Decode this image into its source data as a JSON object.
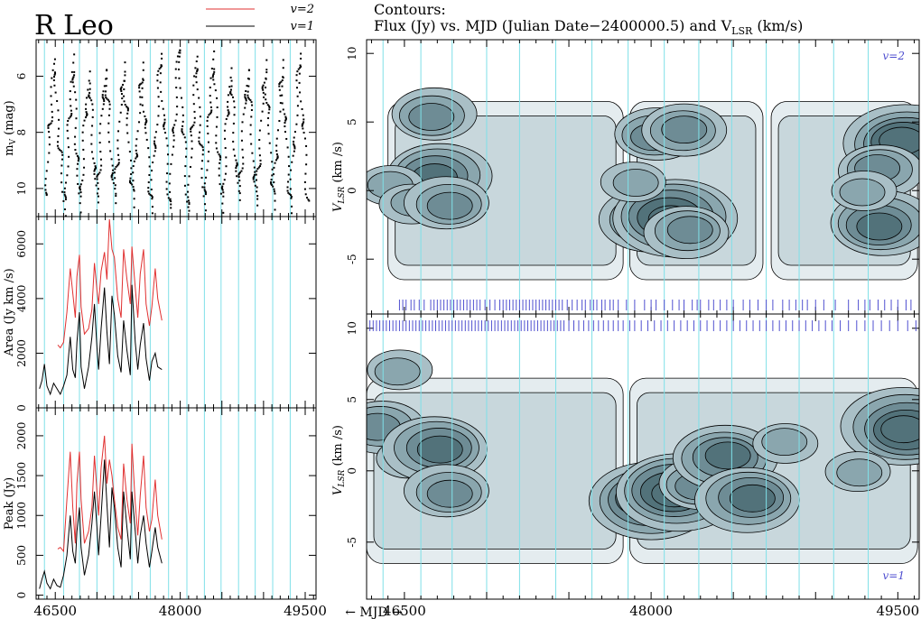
{
  "figure": {
    "star": "R Leo",
    "contour_title_line1": "Contours:",
    "contour_title_line2_part1": "Flux (Jy) vs. MJD (Julian  Date−2400000.5) and V",
    "contour_title_sub": "LSR",
    "contour_title_line2_part2": " (km/s)",
    "mjd_arrow_label": "← MJD →",
    "line_colors": {
      "v2": "#e03030",
      "v1": "#000000",
      "cycle": "#7fe0e8",
      "tick": "#5050d0"
    },
    "contour_fills": [
      "#e4ecef",
      "#c8d7dc",
      "#a9bfc6",
      "#8aa6ae",
      "#6e8c95",
      "#52727a"
    ]
  },
  "chart_data": [
    {
      "id": "light-curve",
      "type": "scatter",
      "xlabel": "",
      "ylabel": "mV (mag)",
      "x_ticks": [
        46500,
        48000,
        49500
      ],
      "y_ticks": [
        6,
        8,
        10
      ],
      "xlim": [
        46270,
        49630
      ],
      "ylim": [
        11.0,
        4.7
      ],
      "series": [
        {
          "x": [
            46370,
            46470,
            46600,
            46700,
            46780,
            46890,
            46990,
            47090,
            47200,
            47310,
            47420,
            47530,
            47640,
            47750,
            47860,
            47970,
            48080,
            48180,
            48280,
            48380,
            48490,
            48590,
            48690,
            48800,
            48900,
            49010,
            49110,
            49210,
            49310,
            49420,
            49520
          ],
          "y": [
            10.2,
            5.7,
            10.6,
            5.5,
            10.6,
            5.9,
            10.5,
            5.6,
            10.5,
            5.6,
            10.4,
            5.8,
            10.5,
            5.5,
            10.4,
            5.2,
            10.5,
            5.6,
            10.4,
            5.4,
            10.6,
            5.8,
            10.4,
            5.6,
            10.6,
            5.5,
            10.5,
            5.7,
            10.5,
            5.5,
            10.4
          ]
        }
      ]
    },
    {
      "id": "area-curve",
      "type": "line",
      "ylabel": "Area (Jy km /s)",
      "y_ticks": [
        0,
        2000,
        4000,
        6000
      ],
      "xlim": [
        46270,
        49630
      ],
      "ylim": [
        0,
        7000
      ],
      "legend": [
        "v=2",
        "v=1"
      ],
      "series": [
        {
          "name": "v=2",
          "x": [
            46530,
            46560,
            46600,
            46640,
            46680,
            46710,
            46740,
            46760,
            46790,
            46810,
            46850,
            46900,
            46940,
            46970,
            47000,
            47020,
            47050,
            47090,
            47120,
            47150,
            47180,
            47210,
            47250,
            47290,
            47320,
            47360,
            47400,
            47420,
            47460,
            47490,
            47520,
            47560,
            47590,
            47630,
            47660,
            47700,
            47730,
            47780
          ],
          "y": [
            2300,
            2200,
            2400,
            3500,
            5100,
            4200,
            3300,
            4800,
            5600,
            3700,
            2700,
            2900,
            3600,
            5300,
            4300,
            3800,
            5000,
            5700,
            4700,
            6900,
            5800,
            5500,
            4000,
            3300,
            5800,
            4700,
            3800,
            5900,
            4400,
            3300,
            4900,
            5800,
            3800,
            3000,
            3700,
            5100,
            4000,
            3200
          ]
        },
        {
          "name": "v=1",
          "x": [
            46310,
            46340,
            46370,
            46400,
            46440,
            46480,
            46520,
            46560,
            46600,
            46640,
            46680,
            46710,
            46740,
            46760,
            46790,
            46810,
            46850,
            46900,
            46940,
            46970,
            47000,
            47020,
            47050,
            47090,
            47120,
            47150,
            47180,
            47210,
            47250,
            47290,
            47320,
            47360,
            47400,
            47420,
            47460,
            47490,
            47520,
            47560,
            47590,
            47630,
            47660,
            47700,
            47730,
            47780
          ],
          "y": [
            700,
            1000,
            1600,
            800,
            500,
            900,
            700,
            500,
            800,
            1200,
            2600,
            1400,
            1100,
            2400,
            3500,
            1500,
            700,
            1500,
            2600,
            3800,
            2200,
            1400,
            2900,
            4400,
            2800,
            1600,
            4100,
            3400,
            1900,
            1300,
            3200,
            2100,
            1200,
            4500,
            2400,
            1400,
            2300,
            3100,
            1800,
            1000,
            1700,
            2000,
            1500,
            1400
          ]
        }
      ]
    },
    {
      "id": "peak-curve",
      "type": "line",
      "ylabel": "Peak (Jy)",
      "x_ticks": [
        46500,
        48000,
        49500
      ],
      "y_ticks": [
        0,
        500,
        1000,
        1500,
        2000
      ],
      "xlim": [
        46270,
        49630
      ],
      "ylim": [
        -50,
        2350
      ],
      "series": [
        {
          "name": "v=2",
          "x": [
            46530,
            46560,
            46600,
            46640,
            46680,
            46710,
            46740,
            46760,
            46790,
            46810,
            46850,
            46900,
            46940,
            46970,
            47000,
            47020,
            47050,
            47090,
            47120,
            47150,
            47180,
            47210,
            47250,
            47290,
            47320,
            47360,
            47400,
            47420,
            47460,
            47490,
            47520,
            47560,
            47590,
            47630,
            47660,
            47700,
            47730,
            47780
          ],
          "y": [
            580,
            600,
            550,
            1200,
            1800,
            1100,
            650,
            1400,
            1800,
            1200,
            650,
            800,
            1100,
            1750,
            1300,
            1000,
            1600,
            2000,
            1400,
            1700,
            1500,
            1200,
            850,
            700,
            1650,
            1200,
            900,
            1900,
            1150,
            750,
            1250,
            1750,
            1100,
            800,
            950,
            1450,
            1000,
            700
          ]
        },
        {
          "name": "v=1",
          "x": [
            46310,
            46340,
            46370,
            46400,
            46440,
            46480,
            46520,
            46560,
            46600,
            46640,
            46680,
            46710,
            46740,
            46760,
            46790,
            46810,
            46850,
            46900,
            46940,
            46970,
            47000,
            47020,
            47050,
            47090,
            47120,
            47150,
            47180,
            47210,
            47250,
            47290,
            47320,
            47360,
            47400,
            47420,
            47460,
            47490,
            47520,
            47560,
            47590,
            47630,
            47660,
            47700,
            47730,
            47780
          ],
          "y": [
            80,
            200,
            300,
            150,
            80,
            200,
            120,
            100,
            250,
            500,
            1000,
            550,
            400,
            800,
            1100,
            600,
            250,
            500,
            900,
            1300,
            850,
            500,
            1000,
            1700,
            1150,
            600,
            1350,
            1100,
            600,
            350,
            1300,
            850,
            450,
            1300,
            800,
            400,
            750,
            1000,
            650,
            350,
            550,
            850,
            600,
            400
          ]
        }
      ]
    },
    {
      "id": "contour-v2",
      "type": "heatmap",
      "label": "v=2",
      "ylabel": "VLSR (km /s)",
      "y_ticks": [
        -5,
        0,
        5,
        10
      ],
      "xlim": [
        46270,
        49630
      ],
      "ylim": [
        -9,
        11
      ],
      "blobs": [
        {
          "mjd": 46700,
          "v": 1.0,
          "level": 5
        },
        {
          "mjd": 46680,
          "v": 5.5,
          "level": 4
        },
        {
          "mjd": 46430,
          "v": 0.5,
          "level": 3
        },
        {
          "mjd": 46560,
          "v": -1.0,
          "level": 3
        },
        {
          "mjd": 46760,
          "v": -1.0,
          "level": 4
        },
        {
          "mjd": 47990,
          "v": -2.0,
          "level": 5
        },
        {
          "mjd": 48130,
          "v": -2.0,
          "level": 6
        },
        {
          "mjd": 48030,
          "v": 4.0,
          "level": 4
        },
        {
          "mjd": 48210,
          "v": 4.5,
          "level": 4
        },
        {
          "mjd": 48230,
          "v": -3.0,
          "level": 4
        },
        {
          "mjd": 47900,
          "v": 0.5,
          "level": 3
        },
        {
          "mjd": 49540,
          "v": 3.5,
          "level": 6
        },
        {
          "mjd": 49380,
          "v": 1.5,
          "level": 4
        },
        {
          "mjd": 49400,
          "v": -2.5,
          "level": 5
        },
        {
          "mjd": 49300,
          "v": 0.0,
          "level": 3
        }
      ]
    },
    {
      "id": "contour-v1",
      "type": "heatmap",
      "label": "v=1",
      "ylabel": "VLSR (km /s)",
      "x_ticks": [
        46500,
        48000,
        49500
      ],
      "y_ticks": [
        -5,
        0,
        5,
        10
      ],
      "xlim": [
        46270,
        49630
      ],
      "ylim": [
        -9,
        11
      ],
      "blobs": [
        {
          "mjd": 46350,
          "v": 3.0,
          "level": 4
        },
        {
          "mjd": 46470,
          "v": 7.0,
          "level": 3
        },
        {
          "mjd": 46540,
          "v": 1.0,
          "level": 3
        },
        {
          "mjd": 46700,
          "v": 1.5,
          "level": 5
        },
        {
          "mjd": 46760,
          "v": -1.5,
          "level": 4
        },
        {
          "mjd": 47990,
          "v": -2.0,
          "level": 6
        },
        {
          "mjd": 48150,
          "v": -1.5,
          "level": 6
        },
        {
          "mjd": 48300,
          "v": -1.0,
          "level": 4
        },
        {
          "mjd": 48460,
          "v": 1.0,
          "level": 5
        },
        {
          "mjd": 48600,
          "v": -2.0,
          "level": 5
        },
        {
          "mjd": 49540,
          "v": 3.0,
          "level": 6
        },
        {
          "mjd": 49250,
          "v": 0.0,
          "level": 3
        },
        {
          "mjd": 48800,
          "v": 2.0,
          "level": 3
        }
      ]
    }
  ],
  "cycles": [
    46370,
    46600,
    46790,
    47000,
    47200,
    47420,
    47640,
    47860,
    48080,
    48290,
    48490,
    48700,
    48900,
    49110,
    49320
  ],
  "obs_ticks_v2": [
    46470,
    46490,
    46510,
    46540,
    46560,
    46590,
    46620,
    46660,
    46680,
    46700,
    46720,
    46740,
    46760,
    46780,
    46800,
    46820,
    46840,
    46860,
    46880,
    46900,
    46920,
    46940,
    46960,
    46990,
    47020,
    47050,
    47080,
    47100,
    47120,
    47140,
    47160,
    47180,
    47200,
    47220,
    47240,
    47260,
    47280,
    47300,
    47320,
    47340,
    47360,
    47380,
    47400,
    47420,
    47440,
    47460,
    47490,
    47520,
    47550,
    47580,
    47600,
    47630,
    47650,
    47670,
    47700,
    47720,
    47750,
    47770,
    47800,
    47850,
    47900,
    47960,
    48000,
    48030,
    48080,
    48130,
    48170,
    48200,
    48250,
    48280,
    48300,
    48350,
    48380,
    48420,
    48460,
    48500,
    48560,
    48600,
    48650,
    48700,
    48740,
    48800,
    48840,
    48880,
    48920,
    48950,
    49000,
    49050,
    49120,
    49200,
    49260,
    49300,
    49330,
    49380,
    49420,
    49460,
    49500,
    49550,
    49580
  ],
  "obs_ticks_v1": [
    46290,
    46310,
    46330,
    46350,
    46370,
    46390,
    46410,
    46430,
    46450,
    46470,
    46490,
    46510,
    46530,
    46550,
    46570,
    46590,
    46610,
    46630,
    46650,
    46670,
    46690,
    46710,
    46730,
    46750,
    46770,
    46790,
    46810,
    46830,
    46850,
    46870,
    46890,
    46910,
    46930,
    46950,
    46970,
    46990,
    47010,
    47030,
    47050,
    47070,
    47090,
    47110,
    47130,
    47150,
    47170,
    47190,
    47210,
    47230,
    47250,
    47270,
    47290,
    47310,
    47330,
    47350,
    47370,
    47390,
    47410,
    47430,
    47450,
    47470,
    47500,
    47530,
    47560,
    47590,
    47620,
    47650,
    47680,
    47710,
    47740,
    47770,
    47800,
    47830,
    47870,
    47900,
    47940,
    47980,
    48020,
    48060,
    48100,
    48140,
    48180,
    48220,
    48260,
    48300,
    48340,
    48380,
    48420,
    48460,
    48500,
    48540,
    48580,
    48620,
    48660,
    48700,
    48740,
    48780,
    48820,
    48860,
    48900,
    48940,
    48980,
    49020,
    49060,
    49100,
    49150,
    49200,
    49250,
    49300,
    49350,
    49400,
    49450,
    49500,
    49560,
    49610
  ]
}
